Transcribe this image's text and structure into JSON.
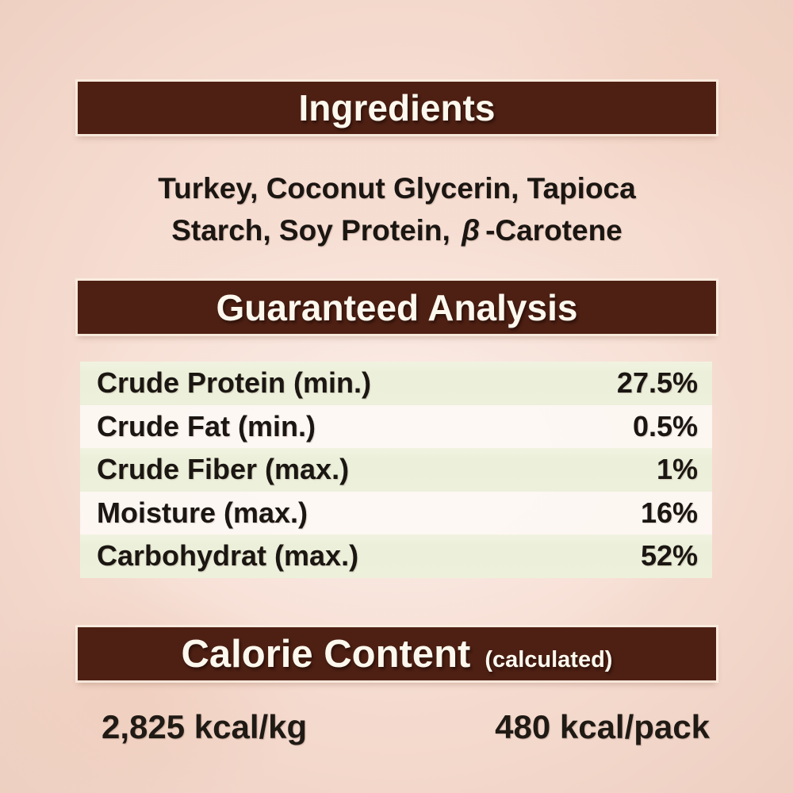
{
  "theme": {
    "background_color": "#f2d7cb",
    "bar_color": "#4e2013",
    "bar_text_color": "#fcf8ee",
    "row_green_color": "#edf0db",
    "row_cream_color": "#fdf9f4",
    "body_text_color": "#1b1612"
  },
  "ingredients": {
    "title": "Ingredients",
    "line1": "Turkey, Coconut Glycerin, Tapioca",
    "line2_prefix": "Starch, Soy Protein,",
    "line2_beta": "β",
    "line2_suffix": "-Carotene"
  },
  "guaranteed_analysis": {
    "title": "Guaranteed Analysis",
    "rows": [
      {
        "label": "Crude Protein (min.)",
        "value": "27.5%"
      },
      {
        "label": "Crude Fat (min.)",
        "value": "0.5%"
      },
      {
        "label": "Crude Fiber (max.)",
        "value": "1%"
      },
      {
        "label": "Moisture (max.)",
        "value": "16%"
      },
      {
        "label": "Carbohydrat (max.)",
        "value": "52%"
      }
    ]
  },
  "calorie_content": {
    "title": "Calorie Content",
    "subtitle": "(calculated)",
    "per_kg": "2,825 kcal/kg",
    "per_pack": "480 kcal/pack"
  }
}
